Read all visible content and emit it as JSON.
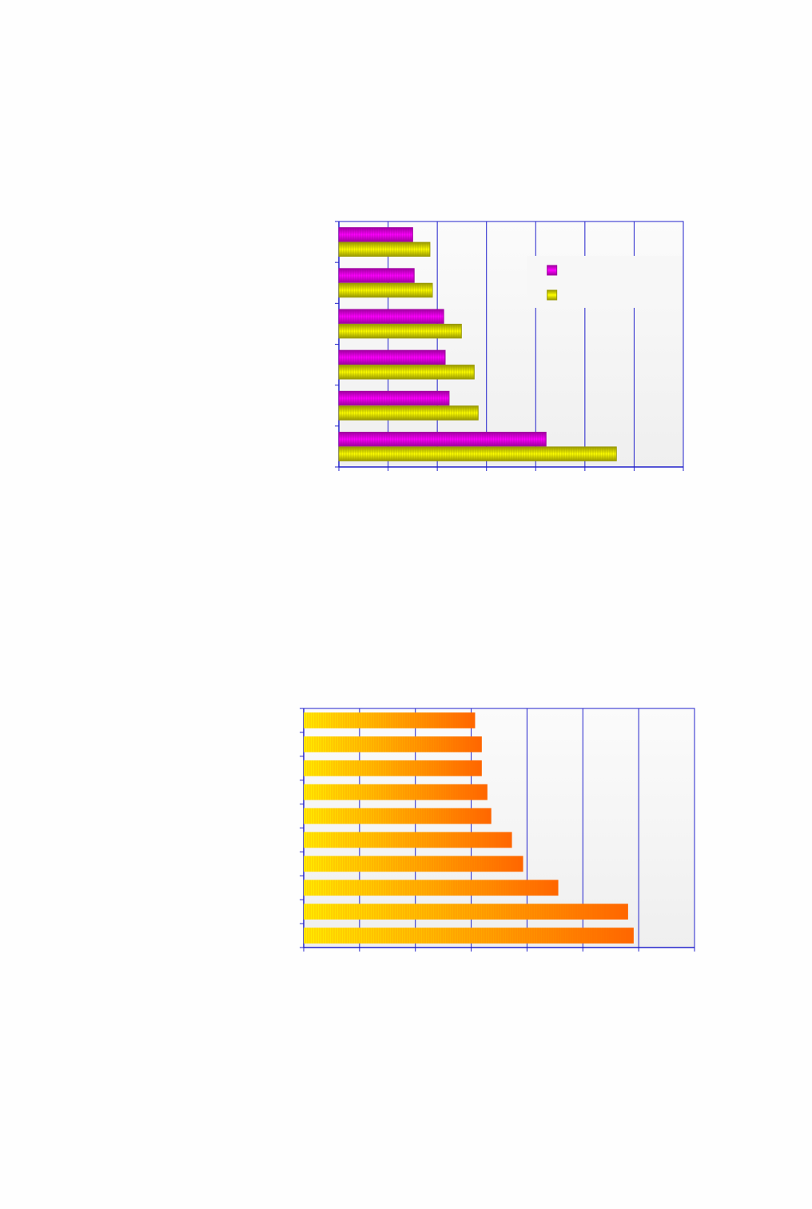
{
  "chart_data": [
    {
      "type": "bar",
      "orientation": "horizontal",
      "categories": [
        null,
        null,
        null,
        null,
        null,
        null
      ],
      "series": [
        {
          "color": "#ff00ff",
          "edge_color": "#a000a0",
          "values": [
            1.5,
            1.53,
            2.13,
            2.16,
            2.24,
            4.21
          ]
        },
        {
          "color": "#ffff00",
          "edge_color": "#9a9a00",
          "values": [
            1.85,
            1.9,
            2.49,
            2.75,
            2.83,
            5.64
          ]
        }
      ],
      "xlim": [
        0,
        7
      ],
      "xticks": [
        0,
        1,
        2,
        3,
        4,
        5,
        6,
        7
      ],
      "grid": true,
      "legend": "right"
    },
    {
      "type": "bar",
      "orientation": "horizontal",
      "categories": [
        null,
        null,
        null,
        null,
        null,
        null,
        null,
        null,
        null,
        null
      ],
      "color": "#ff6600",
      "gradient_start": "#ffee00",
      "values": [
        3.07,
        3.19,
        3.19,
        3.29,
        3.36,
        3.73,
        3.93,
        4.56,
        5.81,
        5.91
      ],
      "xlim": [
        0,
        7
      ],
      "xticks": [
        0,
        1,
        2,
        3,
        4,
        5,
        6,
        7
      ],
      "grid": true
    }
  ]
}
